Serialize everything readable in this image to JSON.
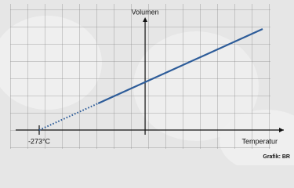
{
  "chart_data": {
    "type": "line",
    "x_label": "Temperatur",
    "y_label": "Volumen",
    "source": "Grafik: BR",
    "color": "#2d5c99",
    "segments": [
      {
        "style": "dotted",
        "x": [
          -273,
          -121
        ],
        "values": [
          0,
          152
        ]
      },
      {
        "style": "solid",
        "x": [
          -121,
          303
        ],
        "values": [
          152,
          576
        ]
      }
    ],
    "xlim": [
      -273,
      303
    ],
    "ylim": [
      0,
      576
    ],
    "xticks": [
      {
        "value": -273,
        "label": "-273°C"
      }
    ],
    "grid": true
  }
}
